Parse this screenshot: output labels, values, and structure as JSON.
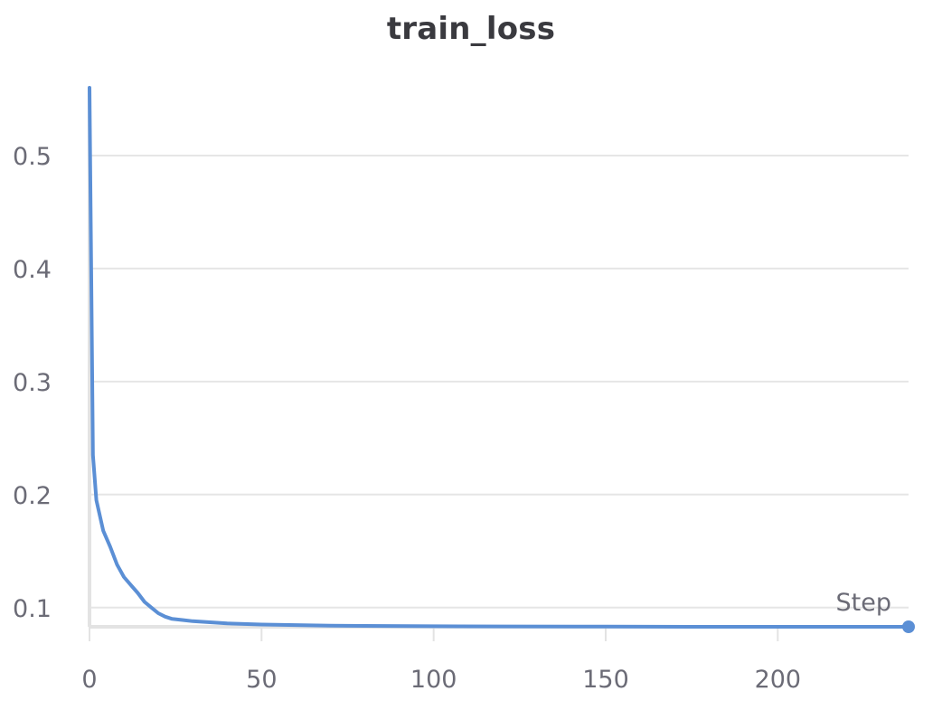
{
  "chart_data": {
    "type": "line",
    "title": "train_loss",
    "xlabel": "Step",
    "ylabel": "",
    "xlim": [
      0,
      238
    ],
    "ylim": [
      0.083,
      0.56
    ],
    "x_ticks": [
      0,
      50,
      100,
      150,
      200
    ],
    "x_tick_labels": [
      "0",
      "50",
      "100",
      "150",
      "200"
    ],
    "y_ticks": [
      0.1,
      0.2,
      0.3,
      0.4,
      0.5
    ],
    "y_tick_labels": [
      "0.1",
      "0.2",
      "0.3",
      "0.4",
      "0.5"
    ],
    "grid": true,
    "legend": false,
    "colors": {
      "line": "#5b8fd5",
      "grid": "#e6e6e6",
      "axis": "#e3e3e3"
    },
    "series": [
      {
        "x": [
          0,
          1,
          2,
          4,
          6,
          8,
          10,
          12,
          14,
          16,
          18,
          20,
          22,
          24,
          27,
          30,
          35,
          40,
          50,
          60,
          70,
          80,
          100,
          120,
          150,
          180,
          200,
          220,
          238
        ],
        "y": [
          0.56,
          0.235,
          0.195,
          0.168,
          0.154,
          0.138,
          0.127,
          0.12,
          0.113,
          0.105,
          0.1,
          0.095,
          0.092,
          0.09,
          0.089,
          0.088,
          0.087,
          0.086,
          0.085,
          0.0845,
          0.084,
          0.0838,
          0.0835,
          0.0833,
          0.0832,
          0.083,
          0.083,
          0.083,
          0.083
        ]
      }
    ]
  }
}
